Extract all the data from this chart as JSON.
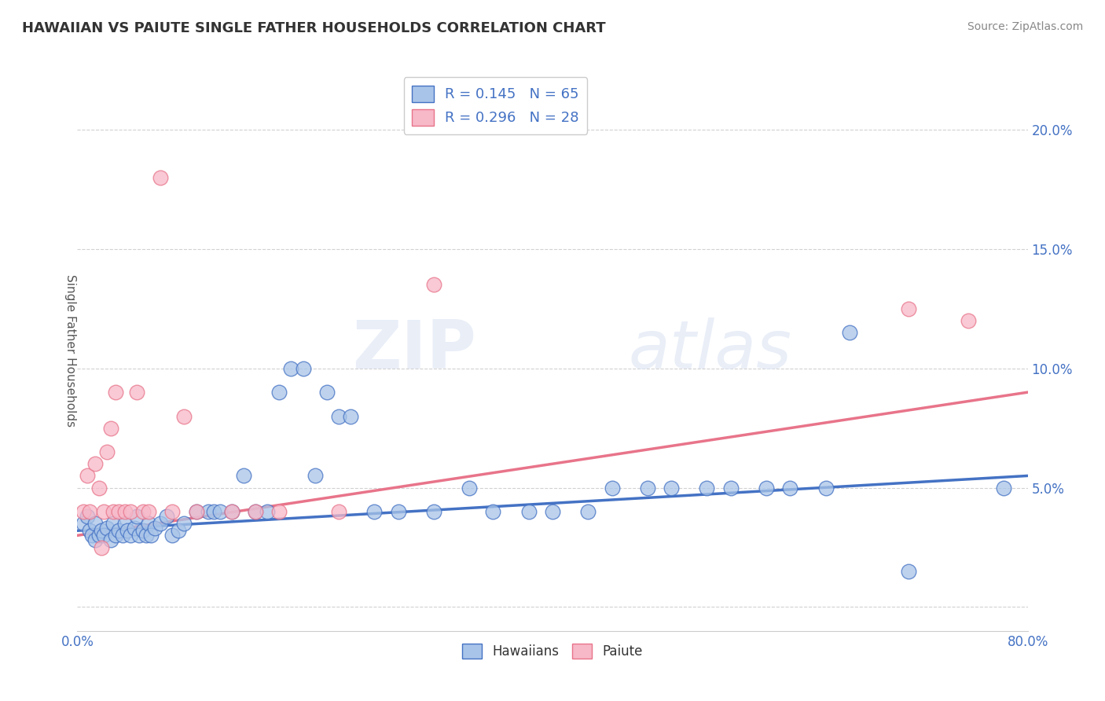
{
  "title": "HAWAIIAN VS PAIUTE SINGLE FATHER HOUSEHOLDS CORRELATION CHART",
  "source": "Source: ZipAtlas.com",
  "ylabel": "Single Father Households",
  "xlim": [
    0.0,
    0.8
  ],
  "ylim": [
    -0.01,
    0.225
  ],
  "xticks": [
    0.0,
    0.1,
    0.2,
    0.3,
    0.4,
    0.5,
    0.6,
    0.7,
    0.8
  ],
  "xticklabels": [
    "0.0%",
    "",
    "",
    "",
    "",
    "",
    "",
    "",
    "80.0%"
  ],
  "yticks": [
    0.0,
    0.05,
    0.1,
    0.15,
    0.2
  ],
  "yticklabels": [
    "",
    "5.0%",
    "10.0%",
    "15.0%",
    "20.0%"
  ],
  "hawaiian_color": "#a8c4e8",
  "paiute_color": "#f7b8c8",
  "hawaiian_line_color": "#4472c4",
  "paiute_line_color": "#e8748a",
  "legend_text_color": "#4472c4",
  "R_hawaiian": 0.145,
  "N_hawaiian": 65,
  "R_paiute": 0.296,
  "N_paiute": 28,
  "hawaiian_x": [
    0.005,
    0.008,
    0.01,
    0.012,
    0.015,
    0.015,
    0.018,
    0.02,
    0.022,
    0.025,
    0.028,
    0.03,
    0.032,
    0.035,
    0.038,
    0.04,
    0.042,
    0.045,
    0.048,
    0.05,
    0.052,
    0.055,
    0.058,
    0.06,
    0.062,
    0.065,
    0.07,
    0.075,
    0.08,
    0.085,
    0.09,
    0.1,
    0.11,
    0.115,
    0.12,
    0.13,
    0.14,
    0.15,
    0.16,
    0.17,
    0.18,
    0.19,
    0.2,
    0.21,
    0.22,
    0.23,
    0.25,
    0.27,
    0.3,
    0.33,
    0.35,
    0.38,
    0.4,
    0.43,
    0.45,
    0.48,
    0.5,
    0.53,
    0.55,
    0.58,
    0.6,
    0.63,
    0.65,
    0.7,
    0.78
  ],
  "hawaiian_y": [
    0.035,
    0.038,
    0.032,
    0.03,
    0.035,
    0.028,
    0.03,
    0.032,
    0.03,
    0.033,
    0.028,
    0.035,
    0.03,
    0.032,
    0.03,
    0.035,
    0.032,
    0.03,
    0.033,
    0.038,
    0.03,
    0.032,
    0.03,
    0.035,
    0.03,
    0.033,
    0.035,
    0.038,
    0.03,
    0.032,
    0.035,
    0.04,
    0.04,
    0.04,
    0.04,
    0.04,
    0.055,
    0.04,
    0.04,
    0.09,
    0.1,
    0.1,
    0.055,
    0.09,
    0.08,
    0.08,
    0.04,
    0.04,
    0.04,
    0.05,
    0.04,
    0.04,
    0.04,
    0.04,
    0.05,
    0.05,
    0.05,
    0.05,
    0.05,
    0.05,
    0.05,
    0.05,
    0.115,
    0.015,
    0.05
  ],
  "paiute_x": [
    0.005,
    0.008,
    0.01,
    0.015,
    0.018,
    0.02,
    0.022,
    0.025,
    0.028,
    0.03,
    0.032,
    0.035,
    0.04,
    0.045,
    0.05,
    0.055,
    0.06,
    0.07,
    0.08,
    0.09,
    0.1,
    0.13,
    0.15,
    0.17,
    0.22,
    0.3,
    0.7,
    0.75
  ],
  "paiute_y": [
    0.04,
    0.055,
    0.04,
    0.06,
    0.05,
    0.025,
    0.04,
    0.065,
    0.075,
    0.04,
    0.09,
    0.04,
    0.04,
    0.04,
    0.09,
    0.04,
    0.04,
    0.18,
    0.04,
    0.08,
    0.04,
    0.04,
    0.04,
    0.04,
    0.04,
    0.135,
    0.125,
    0.12
  ],
  "watermark_zip": "ZIP",
  "watermark_atlas": "atlas",
  "background_color": "#ffffff",
  "grid_color": "#cccccc"
}
